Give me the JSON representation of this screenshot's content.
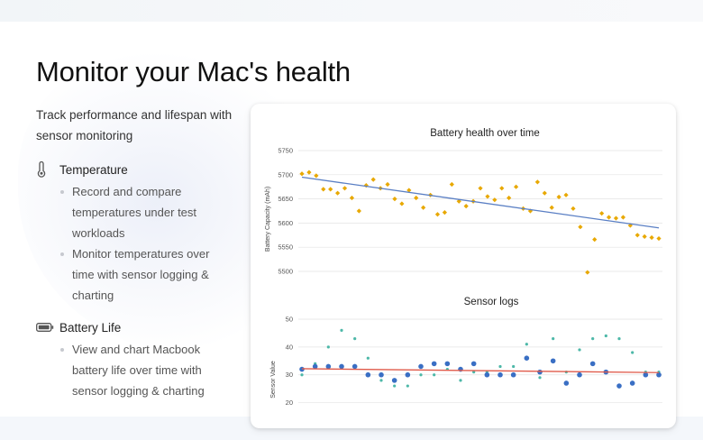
{
  "page": {
    "headline": "Monitor your Mac's health",
    "subtitle": "Track performance and lifespan with sensor monitoring"
  },
  "features": [
    {
      "icon": "thermometer-icon",
      "title": "Temperature",
      "bullets": [
        "Record and compare temperatures under test workloads",
        "Monitor temperatures over time with sensor logging & charting"
      ]
    },
    {
      "icon": "battery-icon",
      "title": "Battery Life",
      "bullets": [
        "View and chart Macbook battery life over time with sensor logging & charting"
      ]
    }
  ],
  "colors": {
    "battery_points": "#e8a800",
    "battery_trend": "#5a7fc4",
    "sensor_series_1": "#3a6fc4",
    "sensor_series_2": "#4db8a8",
    "sensor_trend": "#e05a4a",
    "grid": "#e3e3e3"
  },
  "chart_data": [
    {
      "type": "scatter",
      "title": "Battery health over time",
      "xlabel": "",
      "ylabel": "Battery Capacity (mAh)",
      "ylim": [
        5500,
        5750
      ],
      "yticks": [
        5750,
        5700,
        5650,
        5600,
        5550,
        5500
      ],
      "grid": true,
      "trendline": {
        "start": 5695,
        "end": 5590
      },
      "x": [
        0,
        1,
        2,
        3,
        4,
        5,
        6,
        7,
        8,
        9,
        10,
        11,
        12,
        13,
        14,
        15,
        16,
        17,
        18,
        19,
        20,
        21,
        22,
        23,
        24,
        25,
        26,
        27,
        28,
        29,
        30,
        31,
        32,
        33,
        34,
        35,
        36,
        37,
        38,
        39,
        40,
        41,
        42,
        43,
        44,
        45,
        46,
        47,
        48,
        49,
        50
      ],
      "series": [
        {
          "values": [
            5702,
            5705,
            5698,
            5670,
            5670,
            5662,
            5672,
            5652,
            5625,
            5678,
            5690,
            5672,
            5680,
            5650,
            5640,
            5668,
            5652,
            5632,
            5658,
            5618,
            5622,
            5680,
            5645,
            5635,
            5645,
            5672,
            5655,
            5648,
            5672,
            5652,
            5675,
            5630,
            5625,
            5685,
            5662,
            5632,
            5654,
            5658,
            5630,
            5592,
            5498,
            5566,
            5620,
            5612,
            5610,
            5612,
            5595,
            5575,
            5572,
            5570,
            5568
          ]
        }
      ]
    },
    {
      "type": "scatter",
      "title": "Sensor logs",
      "xlabel": "",
      "ylabel": "Sensor Value",
      "ylim": [
        15,
        50
      ],
      "yticks": [
        50,
        40,
        30,
        20
      ],
      "grid": true,
      "trendline": {
        "start": 32.2,
        "end": 30.8
      },
      "x": [
        0,
        1,
        2,
        3,
        4,
        5,
        6,
        7,
        8,
        9,
        10,
        11,
        12,
        13,
        14,
        15,
        16,
        17,
        18,
        19,
        20,
        21,
        22,
        23,
        24,
        25,
        26,
        27
      ],
      "series": [
        {
          "values": [
            32,
            33,
            33,
            33,
            33,
            30,
            30,
            28,
            30,
            33,
            34,
            34,
            32,
            34,
            30,
            30,
            30,
            36,
            31,
            35,
            27,
            30,
            34,
            31,
            26,
            27,
            30,
            30
          ]
        },
        {
          "values": [
            30,
            34,
            40,
            46,
            43,
            36,
            28,
            26,
            26,
            30,
            30,
            32,
            28,
            31,
            31,
            33,
            33,
            41,
            29,
            43,
            31,
            39,
            43,
            44,
            43,
            38,
            31,
            31
          ]
        }
      ]
    }
  ]
}
